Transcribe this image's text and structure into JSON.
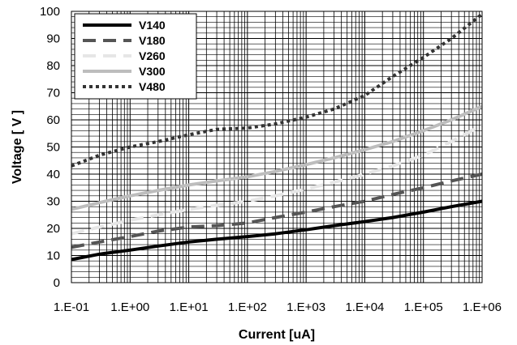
{
  "chart_data": {
    "type": "line",
    "title": "",
    "xlabel": "Current [uA]",
    "ylabel": "Voltage [ V ]",
    "x_scale": "log",
    "xlim": [
      0.1,
      1000000
    ],
    "ylim": [
      0,
      100
    ],
    "x_tick_labels": [
      "1.E-01",
      "1.E+00",
      "1.E+01",
      "1.E+02",
      "1.E+03",
      "1.E+04",
      "1.E+05",
      "1.E+06"
    ],
    "x_tick_values": [
      0.1,
      1,
      10,
      100,
      1000,
      10000,
      100000,
      1000000
    ],
    "y_ticks": [
      0,
      10,
      20,
      30,
      40,
      50,
      60,
      70,
      80,
      90,
      100
    ],
    "grid": true,
    "legend_position": "top-left",
    "series": [
      {
        "name": "V140",
        "color": "#000000",
        "dash": "solid",
        "x": [
          0.1,
          0.3,
          1,
          3,
          10,
          30,
          100,
          300,
          1000,
          3000,
          10000,
          30000,
          100000,
          300000,
          1000000
        ],
        "y": [
          8.5,
          10.5,
          12,
          13.5,
          15,
          16,
          17,
          18,
          19.5,
          21,
          22.5,
          24,
          26,
          28,
          30
        ]
      },
      {
        "name": "V180",
        "color": "#555555",
        "dash": "dash",
        "x": [
          0.1,
          0.3,
          1,
          3,
          10,
          30,
          100,
          300,
          1000,
          3000,
          10000,
          30000,
          100000,
          300000,
          1000000
        ],
        "y": [
          13,
          15,
          17,
          19,
          20.5,
          21,
          22,
          24,
          26,
          28,
          30,
          32.5,
          35,
          37.5,
          40
        ]
      },
      {
        "name": "V260",
        "color": "#e6e6e6",
        "dash": "dash",
        "x": [
          0.1,
          0.3,
          1,
          3,
          10,
          30,
          100,
          300,
          1000,
          3000,
          10000,
          30000,
          100000,
          300000,
          1000000
        ],
        "y": [
          18,
          20.5,
          23,
          25,
          27,
          28.5,
          30,
          32,
          34.5,
          37,
          40,
          43,
          47,
          52,
          58
        ]
      },
      {
        "name": "V300",
        "color": "#bdbdbd",
        "dash": "solid",
        "x": [
          0.1,
          0.3,
          1,
          3,
          10,
          30,
          100,
          300,
          1000,
          3000,
          10000,
          30000,
          100000,
          300000,
          1000000
        ],
        "y": [
          27,
          29.5,
          32,
          34,
          36,
          37.5,
          39,
          41,
          43.5,
          46,
          49,
          52,
          56,
          60,
          65
        ]
      },
      {
        "name": "V480",
        "color": "#333333",
        "dash": "dot",
        "x": [
          0.1,
          0.3,
          1,
          3,
          10,
          30,
          100,
          300,
          1000,
          3000,
          10000,
          30000,
          100000,
          300000,
          1000000
        ],
        "y": [
          43,
          47,
          50,
          52,
          54.5,
          56.5,
          57,
          58.5,
          61,
          64,
          69,
          76,
          83,
          90,
          99
        ]
      }
    ]
  }
}
